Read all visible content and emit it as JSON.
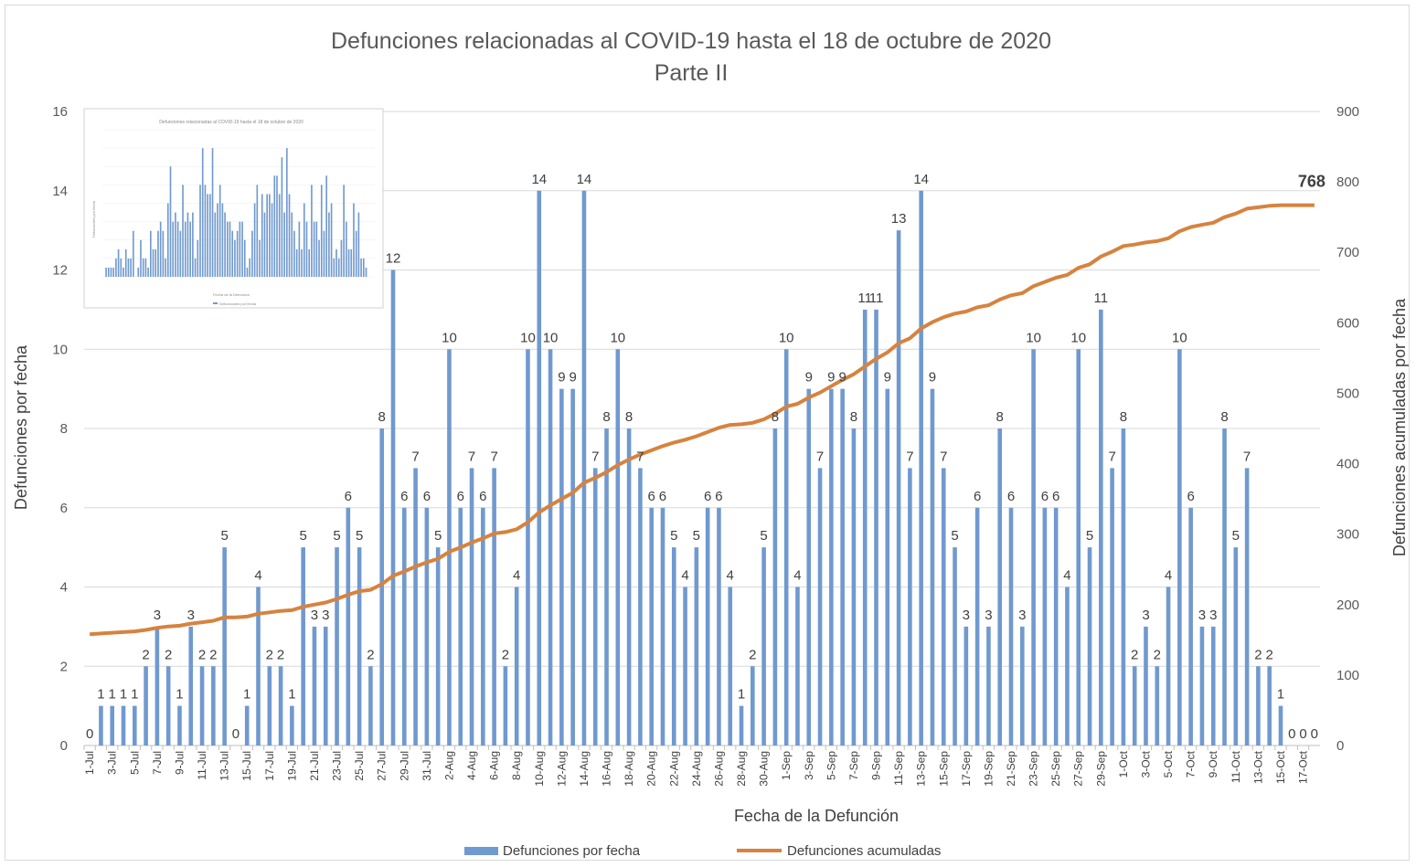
{
  "chart_data": {
    "type": "bar",
    "title": "Defunciones relacionadas al COVID-19 hasta el 18 de octubre de 2020",
    "subtitle": "Parte II",
    "xlabel": "Fecha de la Defunción",
    "ylabel": "Defunciones por fecha",
    "y2label": "Defunciones acumuladas por fecha",
    "ylim": [
      0,
      16
    ],
    "y2lim": [
      0,
      900
    ],
    "yticks": [
      0,
      2,
      4,
      6,
      8,
      10,
      12,
      14,
      16
    ],
    "y2ticks": [
      0,
      100,
      200,
      300,
      400,
      500,
      600,
      700,
      800,
      900
    ],
    "grid": true,
    "legend_position": "bottom",
    "colors": {
      "bars": "#7099CF",
      "line": "#D6833F",
      "grid": "#d9d9d9"
    },
    "categories": [
      "1-Jul",
      "2-Jul",
      "3-Jul",
      "4-Jul",
      "5-Jul",
      "6-Jul",
      "7-Jul",
      "8-Jul",
      "9-Jul",
      "10-Jul",
      "11-Jul",
      "12-Jul",
      "13-Jul",
      "14-Jul",
      "15-Jul",
      "16-Jul",
      "17-Jul",
      "18-Jul",
      "19-Jul",
      "20-Jul",
      "21-Jul",
      "22-Jul",
      "23-Jul",
      "24-Jul",
      "25-Jul",
      "26-Jul",
      "27-Jul",
      "28-Jul",
      "29-Jul",
      "30-Jul",
      "31-Jul",
      "1-Aug",
      "2-Aug",
      "3-Aug",
      "4-Aug",
      "5-Aug",
      "6-Aug",
      "7-Aug",
      "8-Aug",
      "9-Aug",
      "10-Aug",
      "11-Aug",
      "12-Aug",
      "13-Aug",
      "14-Aug",
      "15-Aug",
      "16-Aug",
      "17-Aug",
      "18-Aug",
      "19-Aug",
      "20-Aug",
      "21-Aug",
      "22-Aug",
      "23-Aug",
      "24-Aug",
      "25-Aug",
      "26-Aug",
      "27-Aug",
      "28-Aug",
      "29-Aug",
      "30-Aug",
      "31-Aug",
      "1-Sep",
      "2-Sep",
      "3-Sep",
      "4-Sep",
      "5-Sep",
      "6-Sep",
      "7-Sep",
      "8-Sep",
      "9-Sep",
      "10-Sep",
      "11-Sep",
      "12-Sep",
      "13-Sep",
      "14-Sep",
      "15-Sep",
      "16-Sep",
      "17-Sep",
      "18-Sep",
      "19-Sep",
      "20-Sep",
      "21-Sep",
      "22-Sep",
      "23-Sep",
      "24-Sep",
      "25-Sep",
      "26-Sep",
      "27-Sep",
      "28-Sep",
      "29-Sep",
      "30-Sep",
      "1-Oct",
      "2-Oct",
      "3-Oct",
      "4-Oct",
      "5-Oct",
      "6-Oct",
      "7-Oct",
      "8-Oct",
      "9-Oct",
      "10-Oct",
      "11-Oct",
      "12-Oct",
      "13-Oct",
      "14-Oct",
      "15-Oct",
      "16-Oct",
      "17-Oct",
      "18-Oct"
    ],
    "series": [
      {
        "name": "Defunciones por fecha",
        "type": "bar",
        "axis": "left",
        "values": [
          0,
          1,
          1,
          1,
          1,
          2,
          3,
          2,
          1,
          3,
          2,
          2,
          5,
          0,
          1,
          4,
          2,
          2,
          1,
          5,
          3,
          3,
          5,
          6,
          5,
          2,
          8,
          12,
          6,
          7,
          6,
          5,
          10,
          6,
          7,
          6,
          7,
          2,
          4,
          10,
          14,
          10,
          9,
          9,
          14,
          7,
          8,
          10,
          8,
          7,
          6,
          6,
          5,
          4,
          5,
          6,
          6,
          4,
          1,
          2,
          5,
          8,
          10,
          4,
          9,
          7,
          9,
          9,
          8,
          11,
          11,
          9,
          13,
          7,
          14,
          9,
          7,
          5,
          3,
          6,
          3,
          8,
          6,
          3,
          10,
          6,
          6,
          4,
          10,
          5,
          11,
          7,
          8,
          2,
          3,
          2,
          4,
          10,
          6,
          3,
          3,
          8,
          5,
          7,
          2,
          2,
          1,
          0,
          0,
          0
        ]
      },
      {
        "name": "Defunciones acumuladas",
        "type": "line",
        "axis": "right",
        "start_value": 158,
        "end_label": "768"
      }
    ]
  },
  "legend": {
    "bars_label": "Defunciones por fecha",
    "line_label": "Defunciones acumuladas"
  },
  "inset": {
    "title": "Defunciones relacionadas al COVID-19 hasta el 18 de octubre de 2020",
    "xlabel": "Fecha de la Defunción",
    "ylabel": "Defunciones por fecha",
    "legend": "Defunciones por fecha"
  }
}
